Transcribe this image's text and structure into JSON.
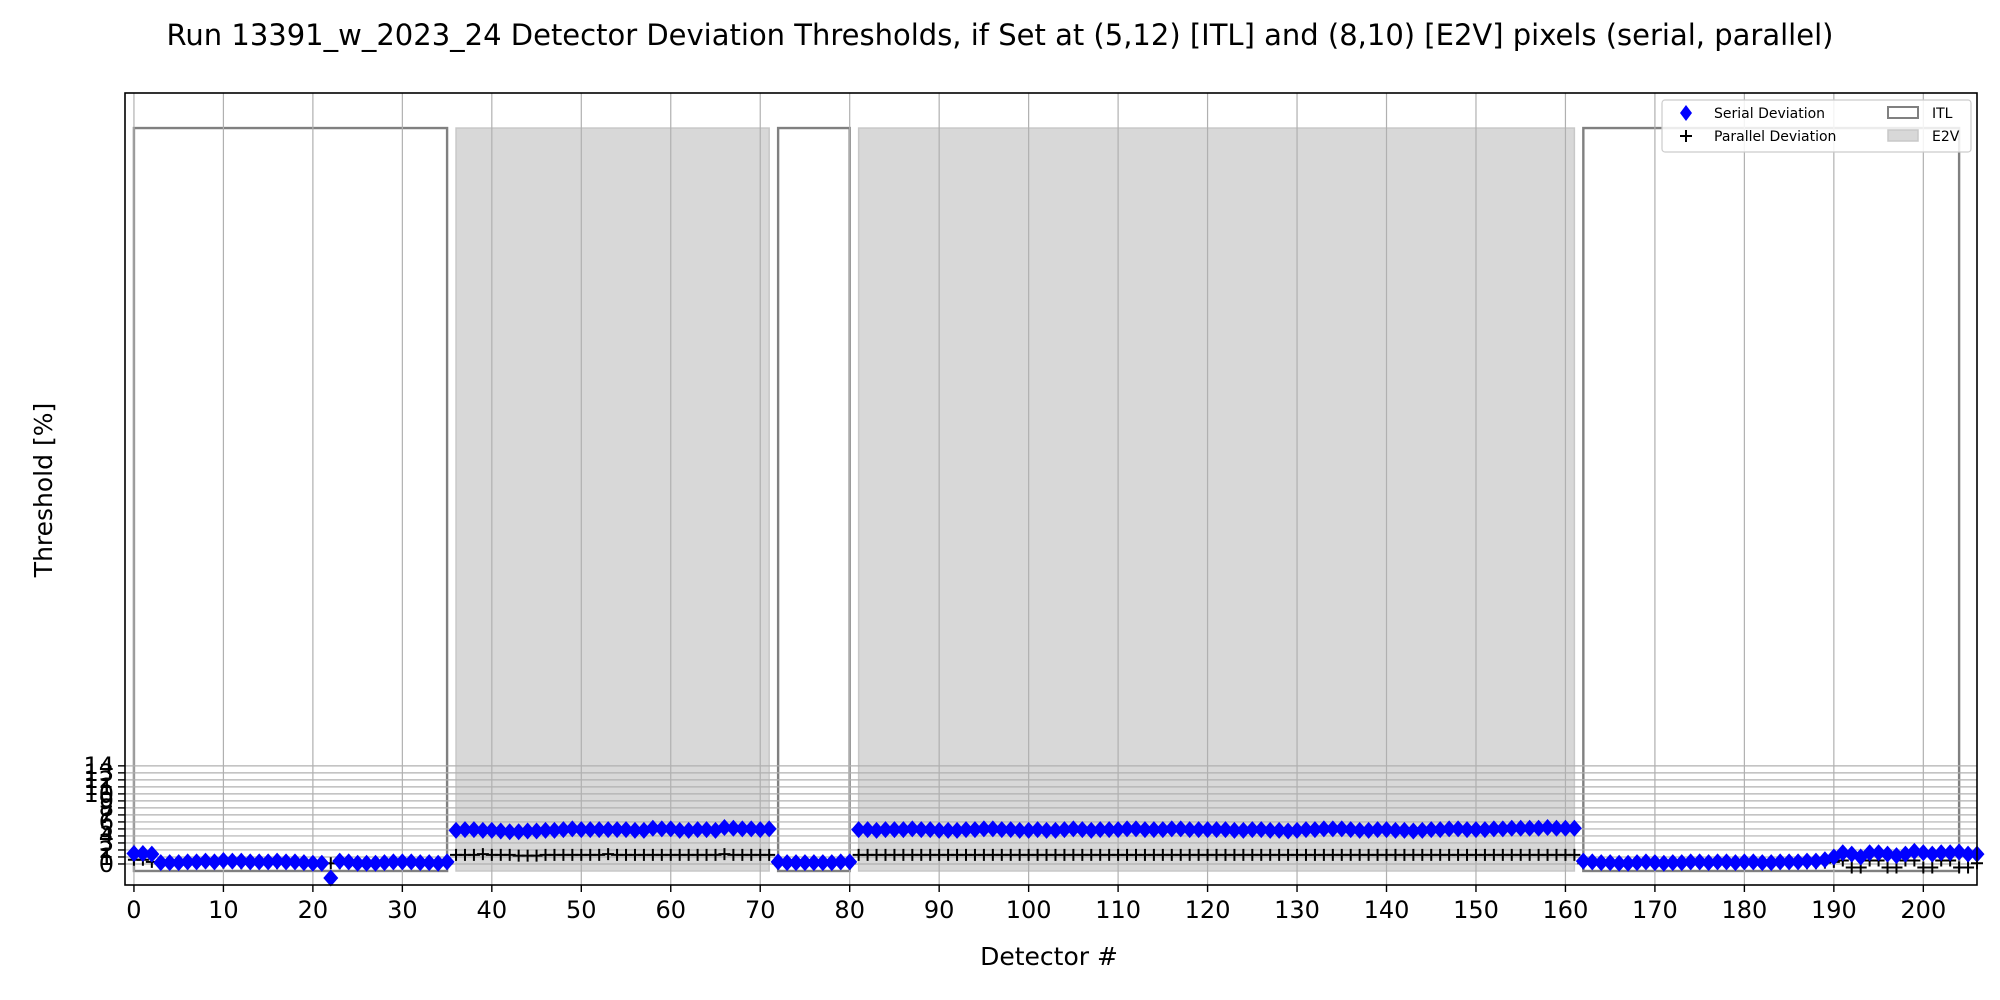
{
  "chart_data": {
    "type": "scatter",
    "title": "Run 13391_w_2023_24 Detector Deviation Thresholds, if Set at (5,12) [ITL] and (8,10) [E2V] pixels (serial, parallel)",
    "xlabel": "Detector #",
    "ylabel": "Threshold [%]",
    "xlim": [
      -1,
      206
    ],
    "ylim": [
      -3,
      110
    ],
    "x_ticks": [
      0,
      10,
      20,
      30,
      40,
      50,
      60,
      70,
      80,
      90,
      100,
      110,
      120,
      130,
      140,
      150,
      160,
      170,
      180,
      190,
      200
    ],
    "y_ticks": [
      0,
      1,
      2,
      3,
      4,
      5,
      6,
      7,
      8,
      9,
      10,
      11,
      12,
      13,
      14
    ],
    "grid": true,
    "legend_position": "top-right",
    "legend": [
      {
        "name": "Serial Deviation",
        "marker": "diamond"
      },
      {
        "name": "Parallel Deviation",
        "marker": "plus"
      },
      {
        "name": "ITL",
        "marker": "box-outline"
      },
      {
        "name": "E2V",
        "marker": "box-filled"
      }
    ],
    "bands": [
      {
        "type": "ITL",
        "x_start": 0,
        "x_end": 35,
        "y_top": 105
      },
      {
        "type": "E2V",
        "x_start": 36,
        "x_end": 71,
        "y_top": 105
      },
      {
        "type": "ITL",
        "x_start": 72,
        "x_end": 80,
        "y_top": 105
      },
      {
        "type": "E2V",
        "x_start": 81,
        "x_end": 161,
        "y_top": 105
      },
      {
        "type": "ITL",
        "x_start": 162,
        "x_end": 204,
        "y_top": 105
      }
    ],
    "band_bottom": -1,
    "series": [
      {
        "name": "Serial Deviation",
        "color": "#0000ff",
        "groups": [
          {
            "x_start": 0,
            "x_end": 35,
            "values": [
              1.5,
              1.5,
              1.4,
              0.2,
              0.2,
              0.2,
              0.3,
              0.3,
              0.4,
              0.3,
              0.5,
              0.4,
              0.4,
              0.3,
              0.3,
              0.3,
              0.4,
              0.3,
              0.3,
              0.2,
              0.1,
              0.1,
              -2,
              0.4,
              0.3,
              0.1,
              0.1,
              0.1,
              0.2,
              0.3,
              0.3,
              0.3,
              0.2,
              0.2,
              0.1,
              0.3
            ]
          },
          {
            "x_start": 36,
            "x_end": 71,
            "values": [
              4.8,
              4.9,
              4.9,
              4.8,
              4.8,
              4.7,
              4.6,
              4.6,
              4.7,
              4.7,
              4.8,
              4.8,
              4.9,
              5.0,
              4.9,
              4.9,
              4.9,
              4.9,
              4.9,
              4.9,
              4.8,
              4.8,
              5.1,
              5.0,
              5.0,
              4.8,
              4.8,
              4.9,
              4.9,
              4.8,
              5.2,
              5.1,
              5.0,
              5.0,
              4.9,
              5.0
            ]
          },
          {
            "x_start": 72,
            "x_end": 80,
            "values": [
              0.3,
              0.2,
              0.2,
              0.2,
              0.2,
              0.2,
              0.2,
              0.3,
              0.3
            ]
          },
          {
            "x_start": 81,
            "x_end": 161,
            "values": [
              4.9,
              4.9,
              4.8,
              4.9,
              4.9,
              4.9,
              5.0,
              4.9,
              4.9,
              4.8,
              4.8,
              4.8,
              4.9,
              4.9,
              5.0,
              5.0,
              4.9,
              4.9,
              4.8,
              4.8,
              4.9,
              4.8,
              4.8,
              4.9,
              5.0,
              4.9,
              4.8,
              4.9,
              4.9,
              4.9,
              5.0,
              5.0,
              4.9,
              4.9,
              4.9,
              5.0,
              5.0,
              4.9,
              4.9,
              4.9,
              4.9,
              4.9,
              4.8,
              4.8,
              4.9,
              4.9,
              4.8,
              4.8,
              4.7,
              4.8,
              4.9,
              4.9,
              5.0,
              5.0,
              5.0,
              4.9,
              4.8,
              4.8,
              4.9,
              4.9,
              4.8,
              4.8,
              4.7,
              4.8,
              4.9,
              4.9,
              5.0,
              5.0,
              4.9,
              4.9,
              4.9,
              5.0,
              5.0,
              5.1,
              5.1,
              5.1,
              5.1,
              5.2,
              5.1,
              5.1,
              5.1
            ]
          },
          {
            "x_start": 162,
            "x_end": 204,
            "values": [
              0.4,
              0.3,
              0.2,
              0.2,
              0.1,
              0.1,
              0.2,
              0.3,
              0.2,
              0.1,
              0.2,
              0.2,
              0.3,
              0.3,
              0.2,
              0.3,
              0.3,
              0.2,
              0.3,
              0.3,
              0.2,
              0.2,
              0.3,
              0.3,
              0.3,
              0.4,
              0.4,
              0.6,
              1.0,
              1.6,
              1.4,
              1.0,
              1.6,
              1.6,
              1.4,
              1.2,
              1.4,
              1.8,
              1.6,
              1.4,
              1.6,
              1.6,
              1.7,
              1.4,
              1.4
            ]
          }
        ]
      },
      {
        "name": "Parallel Deviation",
        "color": "#000000",
        "groups": [
          {
            "x_start": 0,
            "x_end": 35,
            "values": [
              0.6,
              0.6,
              0.3,
              0.1,
              0.1,
              0.1,
              0.1,
              0.2,
              0.2,
              0.1,
              0.2,
              0.2,
              0.1,
              0.1,
              0.1,
              0.2,
              0.1,
              0.1,
              0.1,
              0.1,
              0.1,
              0.1,
              0.1,
              0.1,
              0.1,
              0.1,
              0.1,
              0.1,
              0.1,
              0.1,
              0.1,
              0.1,
              0.1,
              0.1,
              0.1,
              0.1
            ]
          },
          {
            "x_start": 36,
            "x_end": 71,
            "values": [
              1.3,
              1.3,
              1.3,
              1.4,
              1.3,
              1.3,
              1.3,
              1.2,
              1.2,
              1.2,
              1.3,
              1.3,
              1.3,
              1.3,
              1.3,
              1.3,
              1.3,
              1.4,
              1.3,
              1.3,
              1.3,
              1.3,
              1.3,
              1.3,
              1.3,
              1.3,
              1.3,
              1.3,
              1.3,
              1.3,
              1.4,
              1.3,
              1.3,
              1.3,
              1.3,
              1.3
            ]
          },
          {
            "x_start": 72,
            "x_end": 80,
            "values": [
              0.1,
              0.1,
              0.1,
              0.1,
              0.1,
              0.1,
              0.1,
              0.1,
              0.1
            ]
          },
          {
            "x_start": 81,
            "x_end": 161,
            "values": [
              1.3,
              1.3,
              1.3,
              1.3,
              1.3,
              1.3,
              1.3,
              1.3,
              1.3,
              1.3,
              1.3,
              1.3,
              1.3,
              1.3,
              1.3,
              1.3,
              1.3,
              1.3,
              1.3,
              1.3,
              1.3,
              1.3,
              1.3,
              1.3,
              1.3,
              1.3,
              1.3,
              1.3,
              1.3,
              1.3,
              1.3,
              1.3,
              1.3,
              1.3,
              1.3,
              1.3,
              1.3,
              1.3,
              1.3,
              1.3,
              1.3,
              1.3,
              1.3,
              1.3,
              1.3,
              1.3,
              1.3,
              1.3,
              1.3,
              1.3,
              1.3,
              1.3,
              1.3,
              1.3,
              1.3,
              1.3,
              1.3,
              1.3,
              1.3,
              1.3,
              1.3,
              1.3,
              1.3,
              1.3,
              1.3,
              1.3,
              1.3,
              1.3,
              1.3,
              1.3,
              1.3,
              1.3,
              1.3,
              1.3,
              1.3,
              1.3,
              1.3,
              1.3,
              1.3,
              1.3,
              1.3
            ]
          },
          {
            "x_start": 162,
            "x_end": 204,
            "values": [
              0.1,
              0.1,
              0.1,
              0.1,
              0.1,
              0.1,
              0.1,
              0.1,
              0.1,
              0.1,
              0.1,
              0.1,
              0.1,
              0.1,
              0.1,
              0.1,
              0.1,
              0.1,
              0.1,
              0.1,
              0.1,
              0.1,
              0.1,
              0.1,
              0.1,
              0.1,
              0.1,
              0.2,
              0.3,
              0.5,
              -0.5,
              -0.5,
              0.5,
              0.5,
              -0.5,
              -0.5,
              0.5,
              0.5,
              -0.5,
              -0.5,
              0.5,
              0.5,
              -0.5,
              -0.5,
              0.1
            ]
          }
        ]
      }
    ]
  }
}
